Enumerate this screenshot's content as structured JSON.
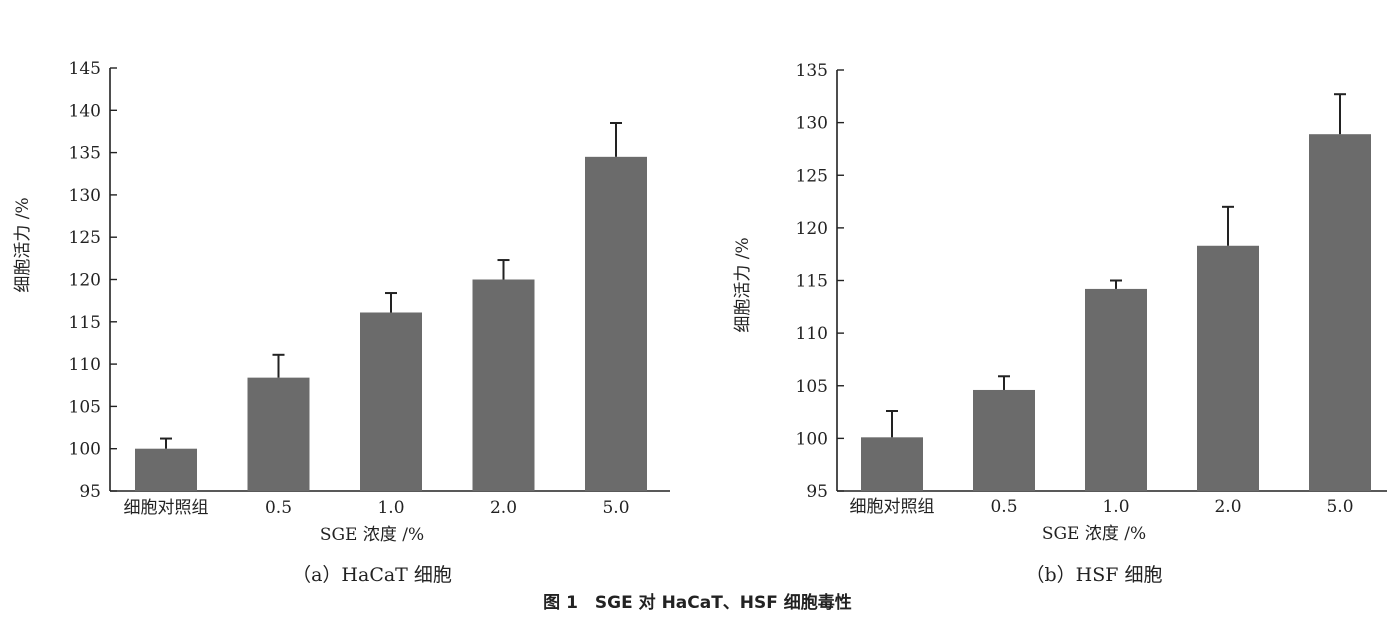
{
  "figure_caption": "图 1　SGE 对 HaCaT、HSF 细胞毒性",
  "colors": {
    "bar": "#6b6b6b",
    "axis": "#222222",
    "text": "#222222"
  },
  "chart_data": [
    {
      "type": "bar",
      "panel_caption": "（a）HaCaT 细胞",
      "xlabel": "SGE 浓度 /%",
      "ylabel": "细胞活力 /%",
      "categories": [
        "细胞对照组",
        "0.5",
        "1.0",
        "2.0",
        "5.0"
      ],
      "values": [
        100,
        108.4,
        116.1,
        120.0,
        134.5
      ],
      "error": [
        1.2,
        2.7,
        2.3,
        2.3,
        4.0
      ],
      "ylim": [
        95,
        145
      ],
      "yticks": [
        95,
        100,
        105,
        110,
        115,
        120,
        125,
        130,
        135,
        140,
        145
      ],
      "grid": false
    },
    {
      "type": "bar",
      "panel_caption": "（b）HSF 细胞",
      "xlabel": "SGE 浓度 /%",
      "ylabel": "细胞活力 /%",
      "categories": [
        "细胞对照组",
        "0.5",
        "1.0",
        "2.0",
        "5.0"
      ],
      "values": [
        100.1,
        104.6,
        114.2,
        118.3,
        128.9
      ],
      "error": [
        2.5,
        1.3,
        0.8,
        3.7,
        3.8
      ],
      "ylim": [
        95,
        135
      ],
      "yticks": [
        95,
        100,
        105,
        110,
        115,
        120,
        125,
        130,
        135
      ],
      "grid": false
    }
  ]
}
